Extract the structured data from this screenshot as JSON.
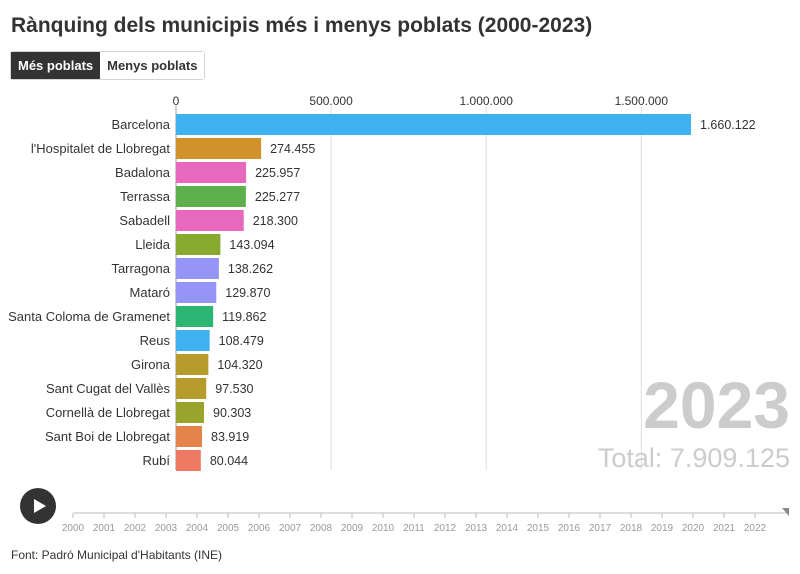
{
  "title": "Rànquing dels municipis més i menys poblats (2000-2023)",
  "tabs": [
    {
      "label": "Més poblats",
      "active": true
    },
    {
      "label": "Menys poblats",
      "active": false
    }
  ],
  "year": "2023",
  "total": "Total: 7.909.125",
  "footer": "Font: Padró Municipal d'Habitants (INE)",
  "colors": {
    "text": "#333333",
    "grid": "#dddddd",
    "overlay": "#cccccc"
  },
  "timeline": {
    "years": [
      "2000",
      "2001",
      "2002",
      "2003",
      "2004",
      "2005",
      "2006",
      "2007",
      "2008",
      "2009",
      "2010",
      "2011",
      "2012",
      "2013",
      "2014",
      "2015",
      "2016",
      "2017",
      "2018",
      "2019",
      "2020",
      "2021",
      "2022"
    ]
  },
  "chart_data": {
    "type": "bar",
    "orientation": "horizontal",
    "xlim": [
      0,
      2000000
    ],
    "ticks": [
      {
        "value": 0,
        "label": "0"
      },
      {
        "value": 500000,
        "label": "500.000"
      },
      {
        "value": 1000000,
        "label": "1.000.000"
      },
      {
        "value": 1500000,
        "label": "1.500.000"
      }
    ],
    "grid": true,
    "categories": [
      "Barcelona",
      "l'Hospitalet de Llobregat",
      "Badalona",
      "Terrassa",
      "Sabadell",
      "Lleida",
      "Tarragona",
      "Mataró",
      "Santa Coloma de Gramenet",
      "Reus",
      "Girona",
      "Sant Cugat del Vallès",
      "Cornellà de Llobregat",
      "Sant Boi de Llobregat",
      "Rubí"
    ],
    "values": [
      1660122,
      274455,
      225957,
      225277,
      218300,
      143094,
      138262,
      129870,
      119862,
      108479,
      104320,
      97530,
      90303,
      83919,
      80044
    ],
    "value_labels": [
      "1.660.122",
      "274.455",
      "225.957",
      "225.277",
      "218.300",
      "143.094",
      "138.262",
      "129.870",
      "119.862",
      "108.479",
      "104.320",
      "97.530",
      "90.303",
      "83.919",
      "80.044"
    ],
    "colors": [
      "#3fb0f0",
      "#d1922c",
      "#e868bd",
      "#5eb04c",
      "#e868bd",
      "#87a92e",
      "#9595f8",
      "#9595f8",
      "#2cb573",
      "#3fb0f0",
      "#b59b2c",
      "#b59b2c",
      "#99a42c",
      "#e5844a",
      "#ef7a64"
    ]
  }
}
